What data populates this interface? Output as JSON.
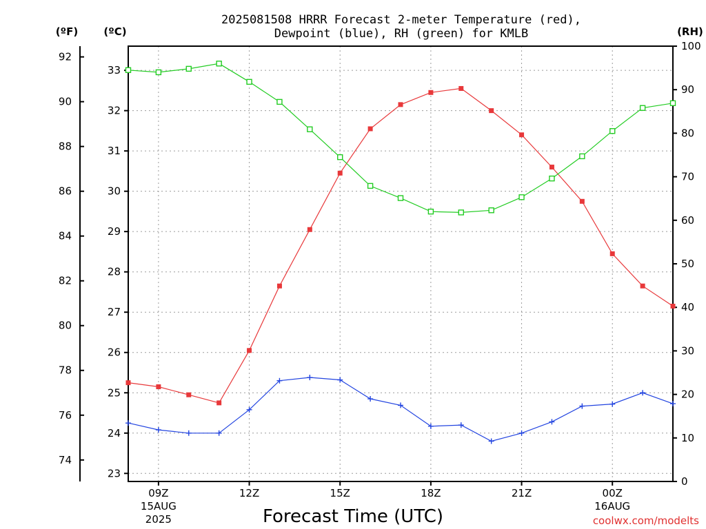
{
  "chart_data": {
    "type": "line",
    "title": "2025081508 HRRR Forecast 2-meter Temperature (red),",
    "subtitle": "Dewpoint (blue), RH (green) for KMLB",
    "xlabel": "Forecast Time (UTC)",
    "credit": "coolwx.com/modelts",
    "units": {
      "fahrenheit": "(ºF)",
      "celsius": "(ºC)",
      "rh": "(RH)"
    },
    "x": [
      "08Z",
      "09Z",
      "10Z",
      "11Z",
      "12Z",
      "13Z",
      "14Z",
      "15Z",
      "16Z",
      "17Z",
      "18Z",
      "19Z",
      "20Z",
      "21Z",
      "22Z",
      "23Z",
      "00Z",
      "01Z",
      "02Z"
    ],
    "x_tick_labels": [
      {
        "hour_index": 1,
        "lines": [
          "09Z",
          "15AUG",
          "2025"
        ]
      },
      {
        "hour_index": 4,
        "lines": [
          "12Z"
        ]
      },
      {
        "hour_index": 7,
        "lines": [
          "15Z"
        ]
      },
      {
        "hour_index": 10,
        "lines": [
          "18Z"
        ]
      },
      {
        "hour_index": 13,
        "lines": [
          "21Z"
        ]
      },
      {
        "hour_index": 16,
        "lines": [
          "00Z",
          "16AUG"
        ]
      }
    ],
    "celsius_axis": {
      "range": [
        22.8,
        33.6
      ],
      "ticks": [
        23,
        24,
        25,
        26,
        27,
        28,
        29,
        30,
        31,
        32,
        33
      ]
    },
    "fahrenheit_axis": {
      "ticks": [
        74,
        76,
        78,
        80,
        82,
        84,
        86,
        88,
        90,
        92
      ]
    },
    "rh_axis": {
      "range": [
        0,
        100
      ],
      "ticks": [
        0,
        10,
        20,
        30,
        40,
        50,
        60,
        70,
        80,
        90,
        100
      ]
    },
    "series": [
      {
        "name": "Temperature",
        "axis": "celsius",
        "color": "#e8383a",
        "marker": "filled-square",
        "values": [
          25.25,
          25.15,
          24.95,
          24.75,
          26.05,
          27.65,
          29.05,
          30.45,
          31.55,
          32.15,
          32.45,
          32.55,
          32.0,
          31.4,
          30.6,
          29.75,
          28.45,
          27.65,
          27.15
        ]
      },
      {
        "name": "Dewpoint",
        "axis": "celsius",
        "color": "#2244e0",
        "marker": "plus",
        "values": [
          24.25,
          24.08,
          24.0,
          24.0,
          24.58,
          25.3,
          25.38,
          25.32,
          24.85,
          24.69,
          24.17,
          24.2,
          23.8,
          24.0,
          24.28,
          24.67,
          24.72,
          25.0,
          24.73
        ]
      },
      {
        "name": "RH",
        "axis": "rh",
        "color": "#22cc22",
        "marker": "open-square",
        "values": [
          94.5,
          94.0,
          94.8,
          96.0,
          91.8,
          87.2,
          80.9,
          74.5,
          67.9,
          65.1,
          62.0,
          61.8,
          62.3,
          65.3,
          69.6,
          74.7,
          80.5,
          85.8,
          86.9
        ]
      }
    ]
  }
}
